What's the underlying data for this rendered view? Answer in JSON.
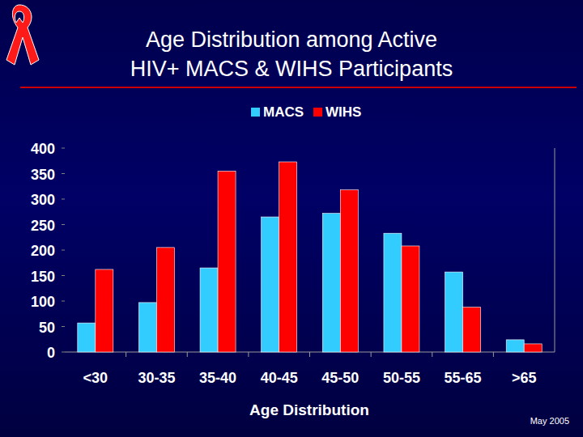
{
  "chart_data": {
    "type": "bar",
    "title": "Age Distribution among Active HIV+ MACS & WIHS Participants",
    "x_label": "Age Distribution",
    "footnote": "May 2005",
    "categories": [
      "<30",
      "30-35",
      "35-40",
      "40-45",
      "45-50",
      "50-55",
      "55-65",
      ">65"
    ],
    "series": [
      {
        "name": "MACS",
        "color": "#33ccff",
        "values": [
          57,
          97,
          165,
          265,
          272,
          233,
          157,
          24
        ]
      },
      {
        "name": "WIHS",
        "color": "#ff0000",
        "values": [
          162,
          205,
          355,
          373,
          318,
          208,
          88,
          16
        ]
      }
    ],
    "ylim": [
      0,
      400
    ],
    "yticks": [
      0,
      50,
      100,
      150,
      200,
      250,
      300,
      350,
      400
    ],
    "grid": false,
    "legend": "top"
  }
}
